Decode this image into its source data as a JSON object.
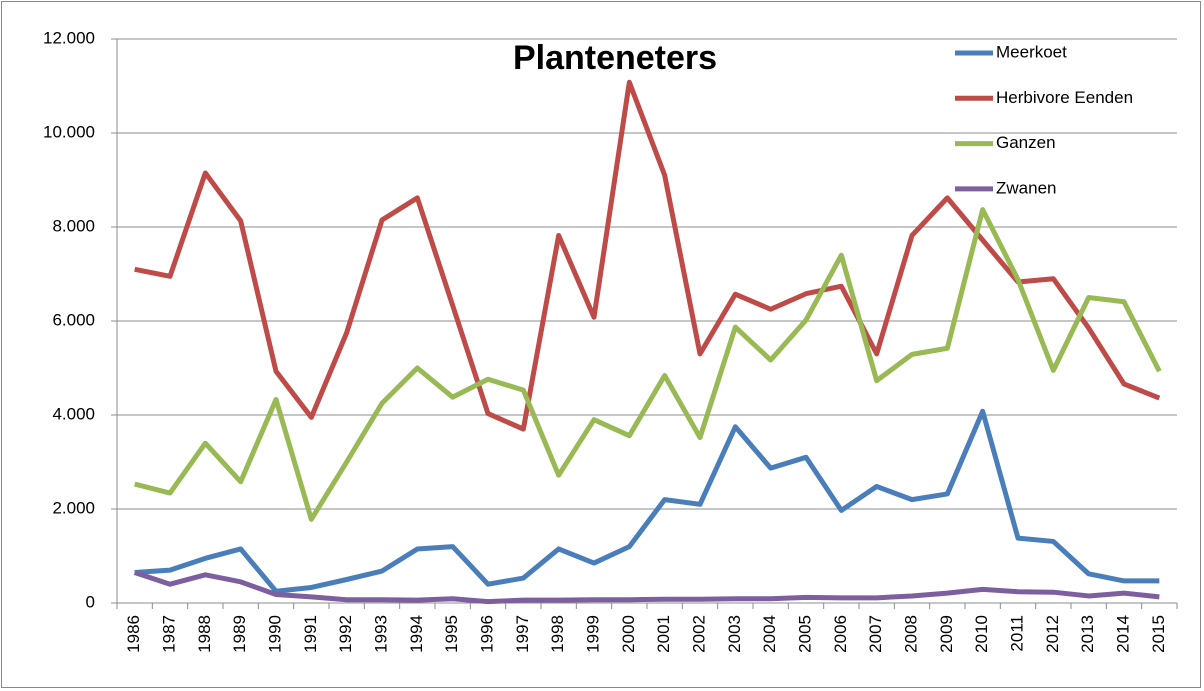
{
  "chart_data": {
    "type": "line",
    "title": "Planteneters",
    "categories": [
      "1986",
      "1987",
      "1988",
      "1989",
      "1990",
      "1991",
      "1992",
      "1993",
      "1994",
      "1995",
      "1996",
      "1997",
      "1998",
      "1999",
      "2000",
      "2001",
      "2002",
      "2003",
      "2004",
      "2005",
      "2006",
      "2007",
      "2008",
      "2009",
      "2010",
      "2011",
      "2012",
      "2013",
      "2014",
      "2015"
    ],
    "series": [
      {
        "name": "Meerkoet",
        "color": "#4a7ebb",
        "values": [
          650,
          700,
          950,
          1150,
          250,
          330,
          500,
          680,
          1150,
          1200,
          400,
          530,
          1150,
          850,
          1200,
          2200,
          2100,
          3750,
          2870,
          3100,
          1970,
          2480,
          2200,
          2320,
          4080,
          1380,
          1310,
          620,
          470,
          470
        ]
      },
      {
        "name": "Herbivore Eenden",
        "color": "#be4b48",
        "values": [
          7100,
          6950,
          9150,
          8130,
          4930,
          3950,
          5750,
          8150,
          8620,
          6330,
          4030,
          3700,
          7820,
          6080,
          11080,
          9100,
          5300,
          6570,
          6250,
          6580,
          6740,
          5300,
          7820,
          8620,
          7720,
          6830,
          6900,
          5850,
          4660,
          4360
        ]
      },
      {
        "name": "Ganzen",
        "color": "#98b954",
        "values": [
          2530,
          2340,
          3400,
          2580,
          4330,
          1780,
          3000,
          4250,
          5000,
          4380,
          4760,
          4530,
          2720,
          3900,
          3560,
          4840,
          3520,
          5870,
          5170,
          6020,
          7400,
          4730,
          5290,
          5420,
          8370,
          6880,
          4950,
          6500,
          6410,
          4930
        ]
      },
      {
        "name": "Zwanen",
        "color": "#7d5fa0",
        "values": [
          650,
          400,
          600,
          450,
          180,
          130,
          70,
          70,
          60,
          90,
          30,
          60,
          60,
          70,
          70,
          80,
          80,
          90,
          90,
          120,
          110,
          110,
          150,
          210,
          290,
          240,
          230,
          150,
          210,
          130
        ]
      }
    ],
    "ylim": [
      0,
      12000
    ],
    "yticks": [
      0,
      {
        "value": 2000,
        "label": "2.000"
      },
      {
        "value": 4000,
        "label": "4.000"
      },
      {
        "value": 6000,
        "label": "6.000"
      },
      {
        "value": 8000,
        "label": "8.000"
      },
      {
        "value": 10000,
        "label": "10.000"
      },
      {
        "value": 12000,
        "label": "12.000"
      }
    ],
    "grid": true,
    "legend": "top-right"
  }
}
